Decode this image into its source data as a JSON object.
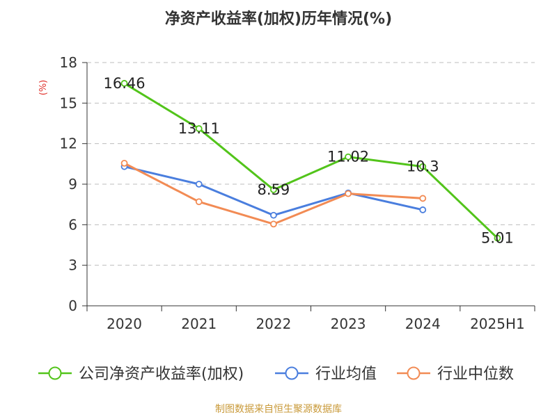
{
  "chart_data": {
    "type": "line",
    "title": "净资产收益率(加权)历年情况(%)",
    "ylabel": "(%)",
    "categories": [
      "2020",
      "2021",
      "2022",
      "2023",
      "2024",
      "2025H1"
    ],
    "ylim": [
      0,
      18
    ],
    "yticks": [
      0,
      3,
      6,
      9,
      12,
      15,
      18
    ],
    "grid": true,
    "legend_position": "bottom",
    "series": [
      {
        "name": "公司净资产收益率(加权)",
        "color": "#52c41a",
        "values": [
          16.46,
          13.11,
          8.59,
          11.02,
          10.3,
          5.01
        ],
        "labels": [
          "16.46",
          "13.11",
          "8.59",
          "11.02",
          "10.3",
          "5.01"
        ]
      },
      {
        "name": "行业均值",
        "color": "#4a7ede",
        "values": [
          10.3,
          9.0,
          6.7,
          8.35,
          7.1,
          null
        ]
      },
      {
        "name": "行业中位数",
        "color": "#f28b54",
        "values": [
          10.55,
          7.7,
          6.05,
          8.3,
          7.95,
          null
        ]
      }
    ]
  },
  "footer": {
    "source": "制图数据来自恒生聚源数据库"
  }
}
